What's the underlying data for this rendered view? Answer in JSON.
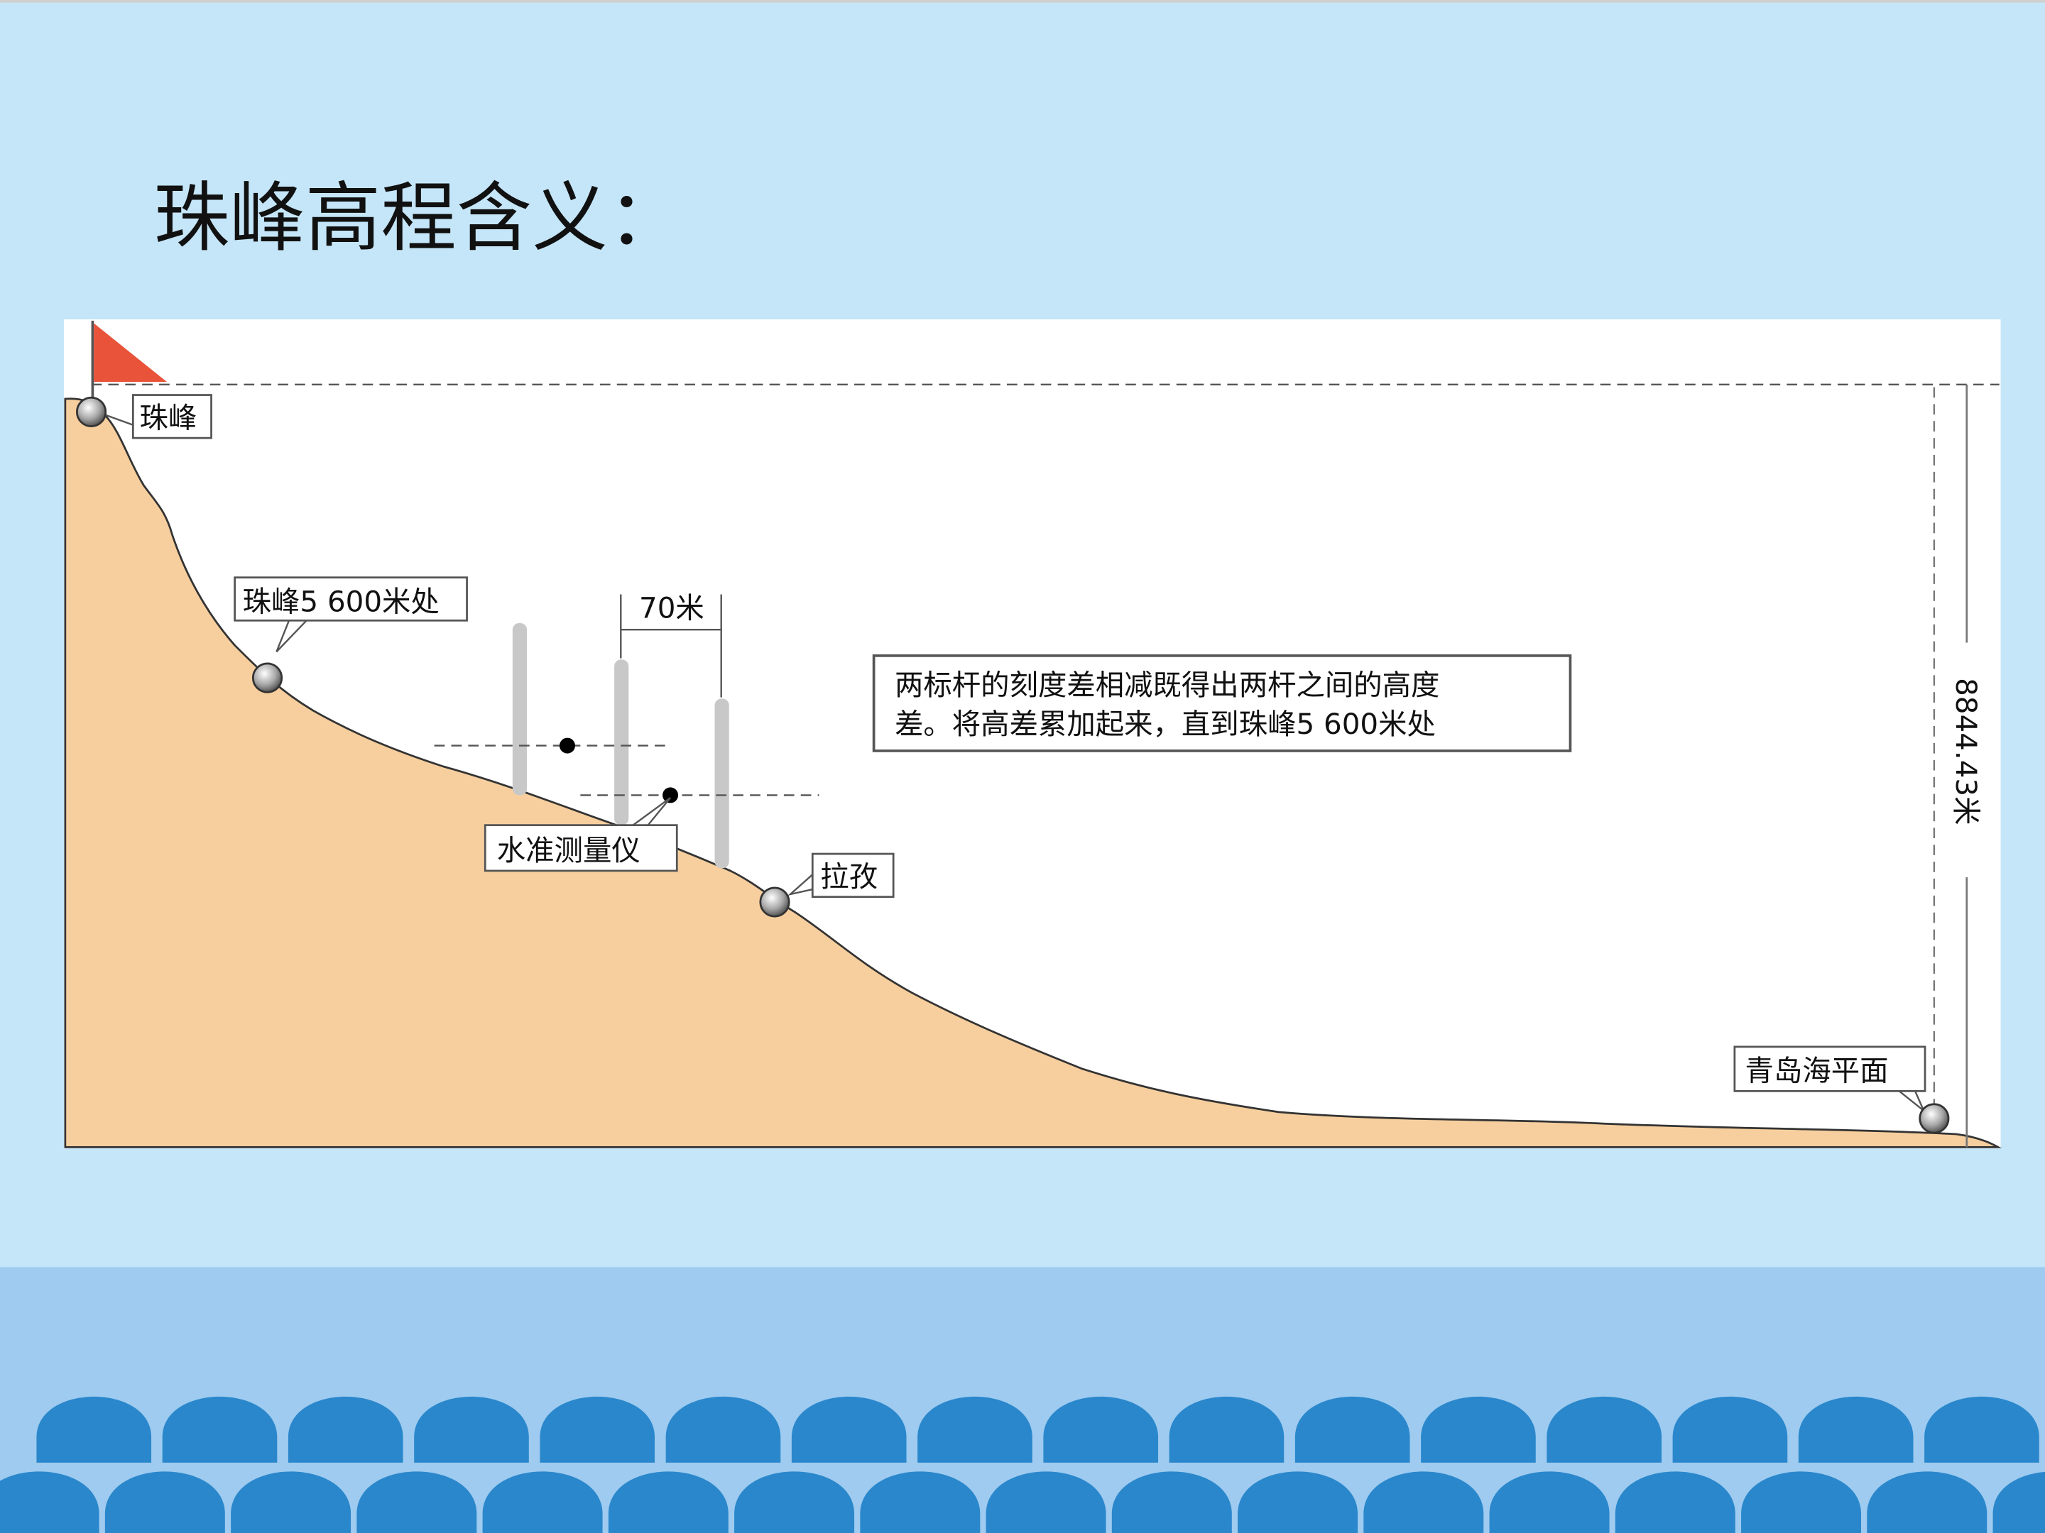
{
  "title": "珠峰高程含义：",
  "diagram": {
    "labels": {
      "peak": "珠峰",
      "camp": "珠峰5 600米处",
      "lhasa": "拉孜",
      "sea_level": "青岛海平面",
      "instrument": "水准测量仪",
      "spacing": "70米",
      "height": "8844.43米"
    },
    "note_lines": [
      "两标杆的刻度差相减既得出两杆之间的高度",
      "差。将高差累加起来，直到珠峰5 600米处"
    ]
  },
  "colors": {
    "background": "#c5e6f8",
    "band": "#9ecbef",
    "waves": "#2a87cc",
    "terrain": "#f7cf9e",
    "flag": "#e8533a"
  }
}
